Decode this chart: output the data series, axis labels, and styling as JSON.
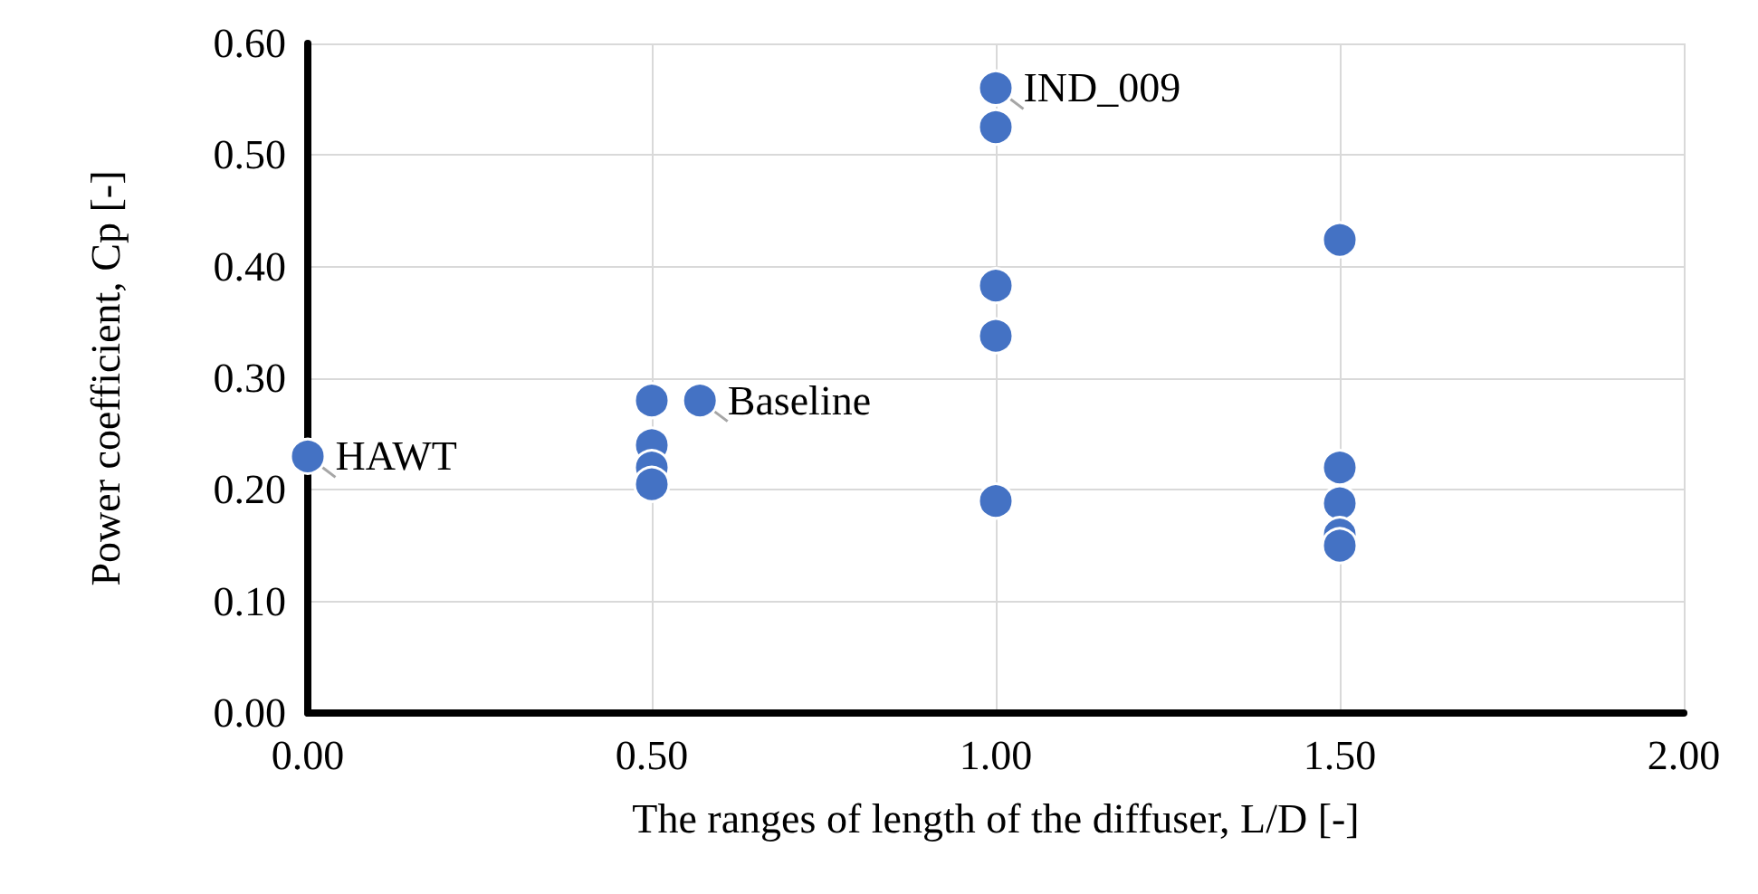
{
  "chart_data": {
    "type": "scatter",
    "xlabel": "The ranges of length of the diffuser, L/D [-]",
    "ylabel": "Power coefficient, Cp [-]",
    "x": [
      0,
      0.5,
      0.57,
      0.5,
      0.5,
      0.5,
      1.0,
      1.0,
      1.0,
      1.0,
      1.0,
      1.5,
      1.5,
      1.5,
      1.5,
      1.5
    ],
    "values": [
      0.23,
      0.28,
      0.28,
      0.24,
      0.22,
      0.205,
      0.56,
      0.525,
      0.383,
      0.338,
      0.19,
      0.424,
      0.22,
      0.188,
      0.16,
      0.15
    ],
    "color": "#4472c4",
    "marker": "circle",
    "xlim": [
      0,
      2
    ],
    "xticks": [
      {
        "value": 0,
        "label": "0.00"
      },
      {
        "value": 0.5,
        "label": "0.50"
      },
      {
        "value": 1,
        "label": "1.00"
      },
      {
        "value": 1.5,
        "label": "1.50"
      },
      {
        "value": 2,
        "label": "2.00"
      }
    ],
    "ylim": [
      0,
      0.6
    ],
    "yticks": [
      {
        "value": 0,
        "label": "0.00"
      },
      {
        "value": 0.1,
        "label": "0.10"
      },
      {
        "value": 0.2,
        "label": "0.20"
      },
      {
        "value": 0.3,
        "label": "0.30"
      },
      {
        "value": 0.4,
        "label": "0.40"
      },
      {
        "value": 0.5,
        "label": "0.50"
      },
      {
        "value": 0.6,
        "label": "0.60"
      }
    ],
    "grid": true,
    "annotations": [
      {
        "text": "HAWT",
        "x": 0,
        "y": 0.23
      },
      {
        "text": "Baseline",
        "x": 0.57,
        "y": 0.28
      },
      {
        "text": "IND_009",
        "x": 1.0,
        "y": 0.56
      }
    ]
  }
}
